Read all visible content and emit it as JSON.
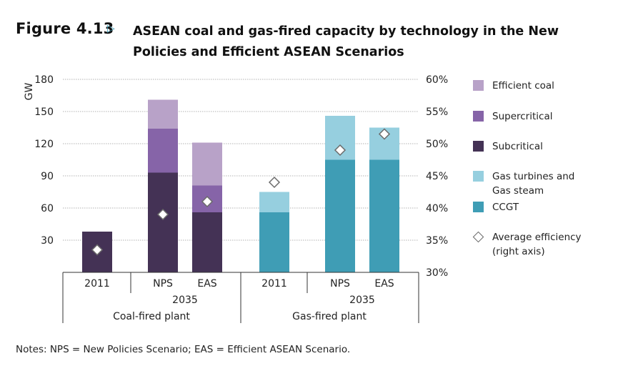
{
  "figure": {
    "label": "Figure 4.13",
    "arrow_icon": "triangle-right-icon",
    "title": "ASEAN coal and gas-fired capacity by technology in the New Policies and Efficient ASEAN Scenarios"
  },
  "notes": "Notes: NPS = New Policies Scenario; EAS = Efficient ASEAN Scenario.",
  "colors": {
    "efficient_coal": "#b8a2c8",
    "supercritical": "#8664a8",
    "subcritical": "#443255",
    "gas_turbines_steam": "#96cfdf",
    "ccgt": "#3f9db5",
    "efficiency_marker_stroke": "#6b6b6b"
  },
  "chart_data": {
    "type": "bar",
    "stacked": true,
    "categories": [
      "2011",
      "NPS",
      "EAS",
      "2011",
      "NPS",
      "EAS"
    ],
    "subgroup_labels": [
      "",
      "2035",
      "",
      "2035"
    ],
    "group_labels": [
      "Coal-fired plant",
      "Gas-fired plant"
    ],
    "ylabel": "GW",
    "ylim": [
      0,
      180
    ],
    "yticks": [
      "30",
      "60",
      "90",
      "120",
      "150",
      "180"
    ],
    "y2lim": [
      30,
      60
    ],
    "y2ticks": [
      "30%",
      "35%",
      "40%",
      "45%",
      "50%",
      "55%",
      "60%"
    ],
    "grid": true,
    "legend_position": "right",
    "series": [
      {
        "name": "Efficient coal",
        "values": [
          0,
          27,
          40,
          0,
          0,
          0
        ]
      },
      {
        "name": "Supercritical",
        "values": [
          0,
          41,
          25,
          0,
          0,
          0
        ]
      },
      {
        "name": "Subcritical",
        "values": [
          38,
          93,
          56,
          0,
          0,
          0
        ]
      },
      {
        "name": "Gas turbines and\nGas steam",
        "values": [
          0,
          0,
          0,
          19,
          41,
          30
        ]
      },
      {
        "name": "CCGT",
        "values": [
          0,
          0,
          0,
          56,
          105,
          105
        ]
      }
    ],
    "line_series": {
      "name": "Average efficiency\n(right axis)",
      "axis": "right",
      "values": [
        33.5,
        39,
        41,
        44,
        49,
        51.5
      ]
    }
  }
}
